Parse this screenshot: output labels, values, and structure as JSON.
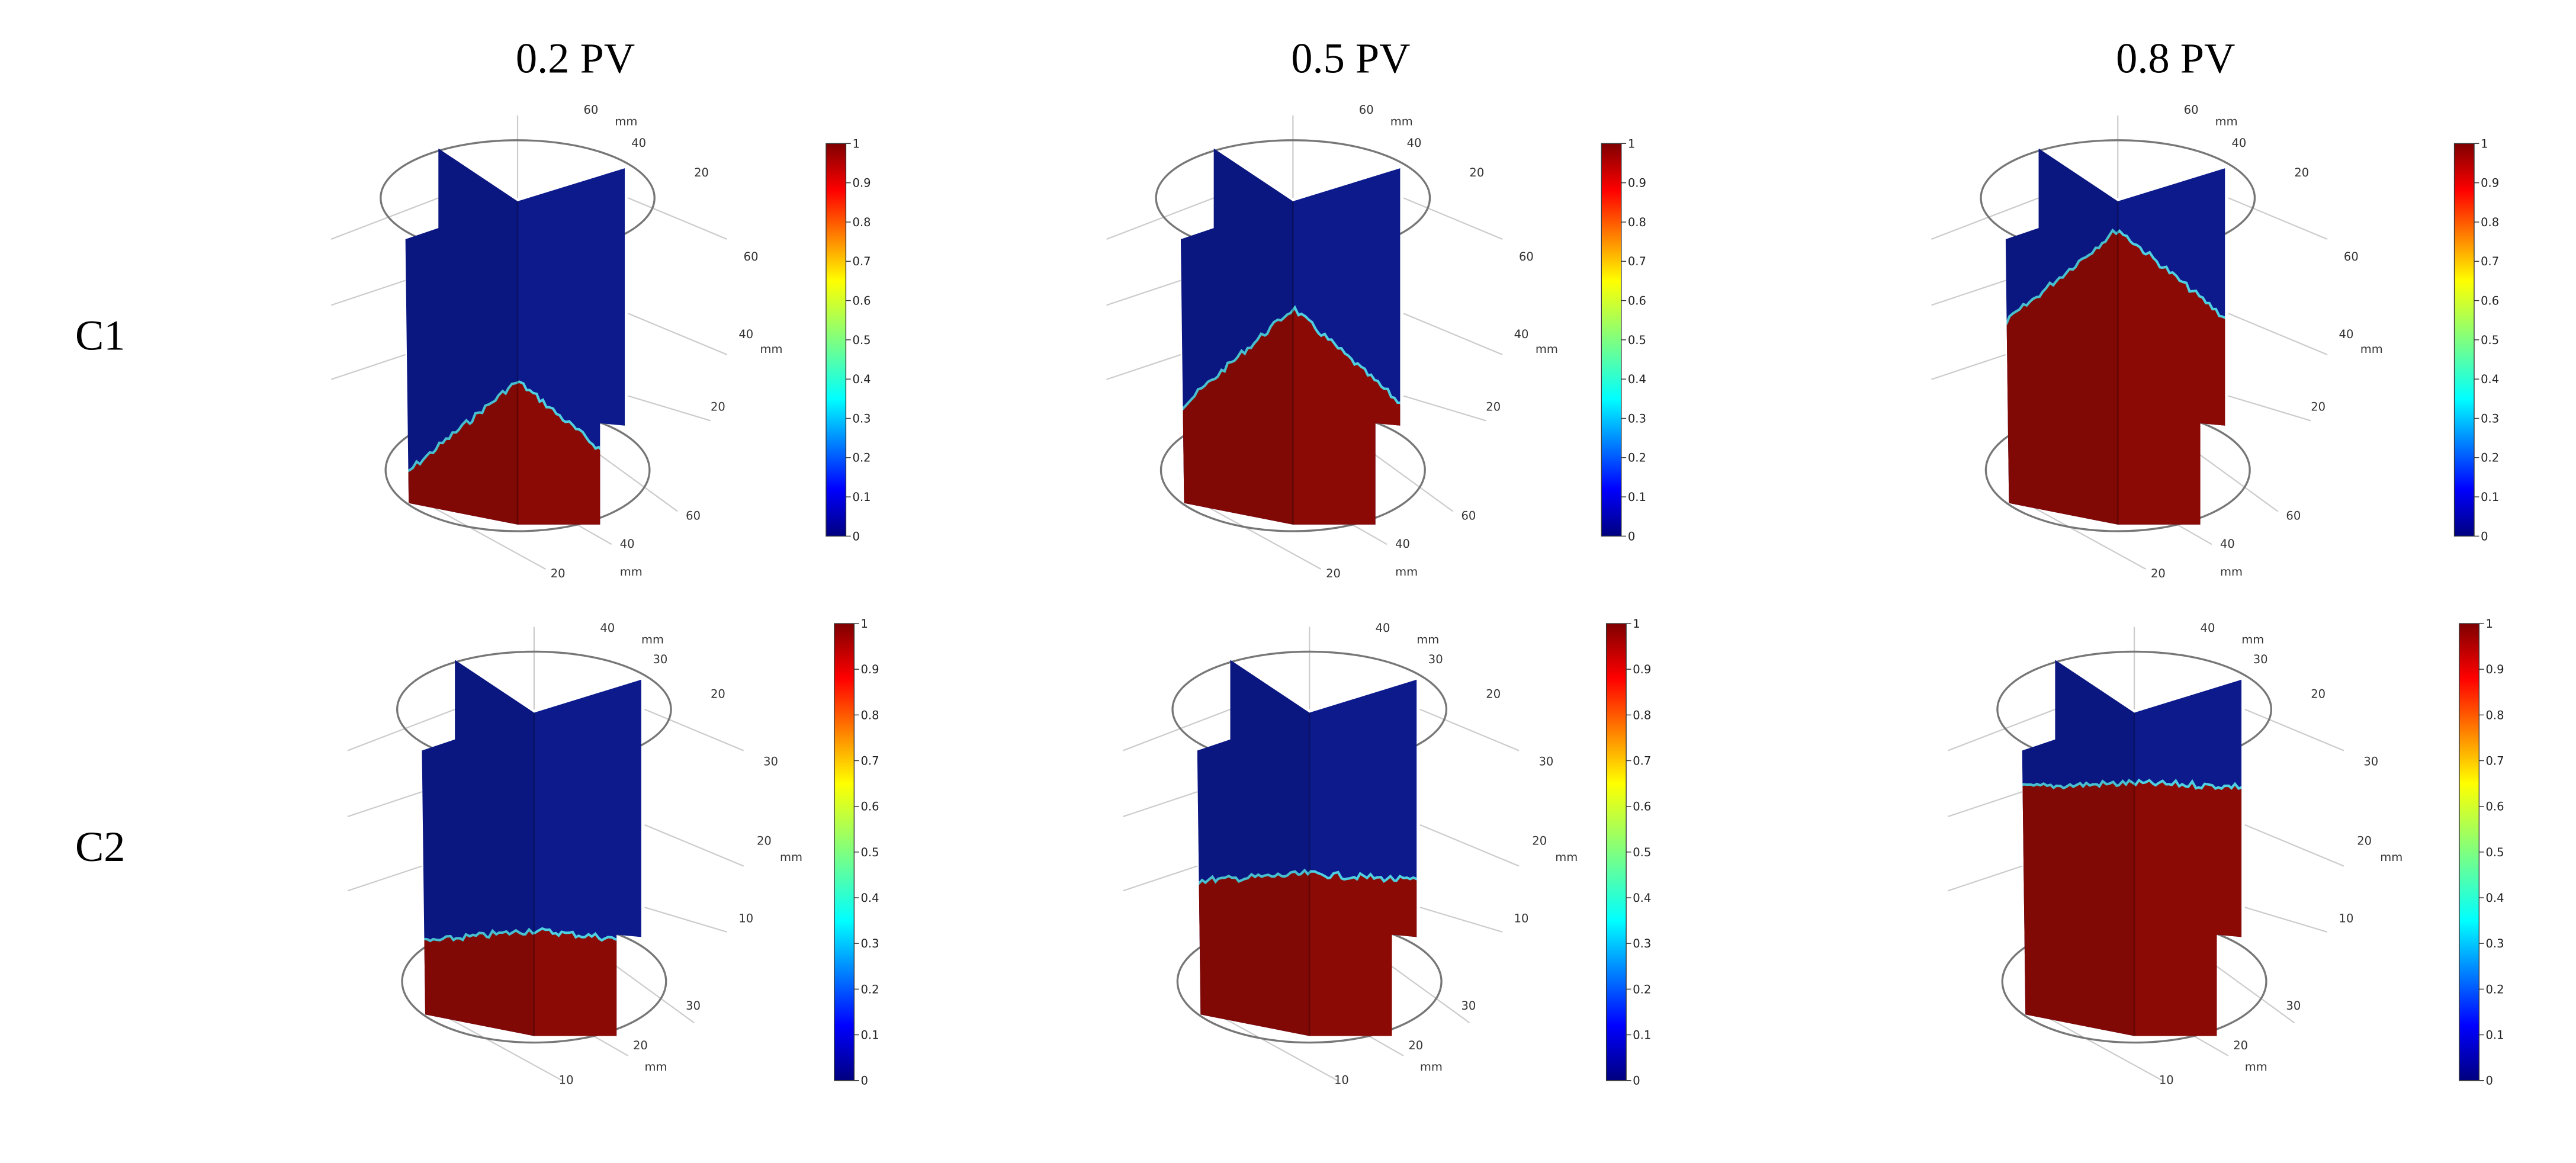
{
  "columns": [
    "0.2 PV",
    "0.5 PV",
    "0.8 PV"
  ],
  "rows": [
    {
      "label": "C1",
      "axis_labels": [
        "60",
        "mm",
        "40",
        "20",
        "60",
        "40",
        "mm",
        "20",
        "60",
        "40",
        "20",
        "mm"
      ]
    },
    {
      "label": "C2",
      "axis_labels": [
        "40",
        "mm",
        "30",
        "20",
        "30",
        "20",
        "mm",
        "10",
        "30",
        "20",
        "mm",
        "10"
      ]
    }
  ],
  "colorbar": {
    "ticks": [
      "0",
      "0.1",
      "0.2",
      "0.3",
      "0.4",
      "0.5",
      "0.6",
      "0.7",
      "0.8",
      "0.9",
      "1"
    ]
  }
}
